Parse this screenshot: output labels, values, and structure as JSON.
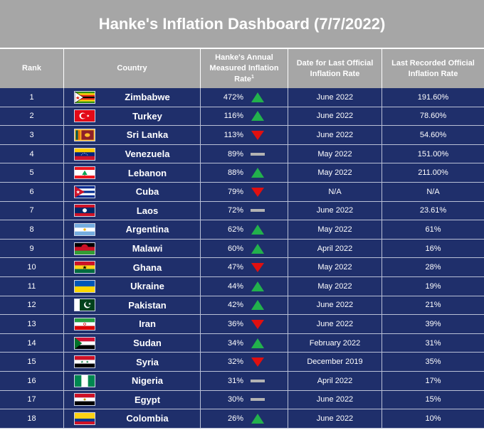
{
  "title": "Hanke's Inflation Dashboard (7/7/2022)",
  "headers": {
    "rank": "Rank",
    "country": "Country",
    "rate": "Hanke's Annual Measured Inflation Rate",
    "rate_sup": "1",
    "date": "Date for Last Official Inflation Rate",
    "last": "Last Recorded Official Inflation Rate"
  },
  "colors": {
    "up": "#22b14c",
    "down": "#e01010",
    "flat": "#b3b3b3",
    "row_bg": "#1f2f6b",
    "header_bg": "#a6a6a6"
  },
  "rows": [
    {
      "rank": "1",
      "country": "Zimbabwe",
      "flag": "zimbabwe-flag-icon",
      "rate": "472%",
      "trend": "up",
      "date": "June 2022",
      "last": "191.60%"
    },
    {
      "rank": "2",
      "country": "Turkey",
      "flag": "turkey-flag-icon",
      "rate": "116%",
      "trend": "up",
      "date": "June 2022",
      "last": "78.60%"
    },
    {
      "rank": "3",
      "country": "Sri Lanka",
      "flag": "sri-lanka-flag-icon",
      "rate": "113%",
      "trend": "down",
      "date": "June 2022",
      "last": "54.60%"
    },
    {
      "rank": "4",
      "country": "Venezuela",
      "flag": "venezuela-flag-icon",
      "rate": "89%",
      "trend": "flat",
      "date": "May 2022",
      "last": "151.00%"
    },
    {
      "rank": "5",
      "country": "Lebanon",
      "flag": "lebanon-flag-icon",
      "rate": "88%",
      "trend": "up",
      "date": "May 2022",
      "last": "211.00%"
    },
    {
      "rank": "6",
      "country": "Cuba",
      "flag": "cuba-flag-icon",
      "rate": "79%",
      "trend": "down",
      "date": "N/A",
      "last": "N/A"
    },
    {
      "rank": "7",
      "country": "Laos",
      "flag": "laos-flag-icon",
      "rate": "72%",
      "trend": "flat",
      "date": "June 2022",
      "last": "23.61%"
    },
    {
      "rank": "8",
      "country": "Argentina",
      "flag": "argentina-flag-icon",
      "rate": "62%",
      "trend": "up",
      "date": "May 2022",
      "last": "61%"
    },
    {
      "rank": "9",
      "country": "Malawi",
      "flag": "malawi-flag-icon",
      "rate": "60%",
      "trend": "up",
      "date": "April 2022",
      "last": "16%"
    },
    {
      "rank": "10",
      "country": "Ghana",
      "flag": "ghana-flag-icon",
      "rate": "47%",
      "trend": "down",
      "date": "May 2022",
      "last": "28%"
    },
    {
      "rank": "11",
      "country": "Ukraine",
      "flag": "ukraine-flag-icon",
      "rate": "44%",
      "trend": "up",
      "date": "May 2022",
      "last": "19%"
    },
    {
      "rank": "12",
      "country": "Pakistan",
      "flag": "pakistan-flag-icon",
      "rate": "42%",
      "trend": "up",
      "date": "June 2022",
      "last": "21%"
    },
    {
      "rank": "13",
      "country": "Iran",
      "flag": "iran-flag-icon",
      "rate": "36%",
      "trend": "down",
      "date": "June 2022",
      "last": "39%"
    },
    {
      "rank": "14",
      "country": "Sudan",
      "flag": "sudan-flag-icon",
      "rate": "34%",
      "trend": "up",
      "date": "February 2022",
      "last": "31%"
    },
    {
      "rank": "15",
      "country": "Syria",
      "flag": "syria-flag-icon",
      "rate": "32%",
      "trend": "down",
      "date": "December 2019",
      "last": "35%"
    },
    {
      "rank": "16",
      "country": "Nigeria",
      "flag": "nigeria-flag-icon",
      "rate": "31%",
      "trend": "flat",
      "date": "April 2022",
      "last": "17%"
    },
    {
      "rank": "17",
      "country": "Egypt",
      "flag": "egypt-flag-icon",
      "rate": "30%",
      "trend": "flat",
      "date": "June 2022",
      "last": "15%"
    },
    {
      "rank": "18",
      "country": "Colombia",
      "flag": "colombia-flag-icon",
      "rate": "26%",
      "trend": "up",
      "date": "June 2022",
      "last": "10%"
    }
  ]
}
